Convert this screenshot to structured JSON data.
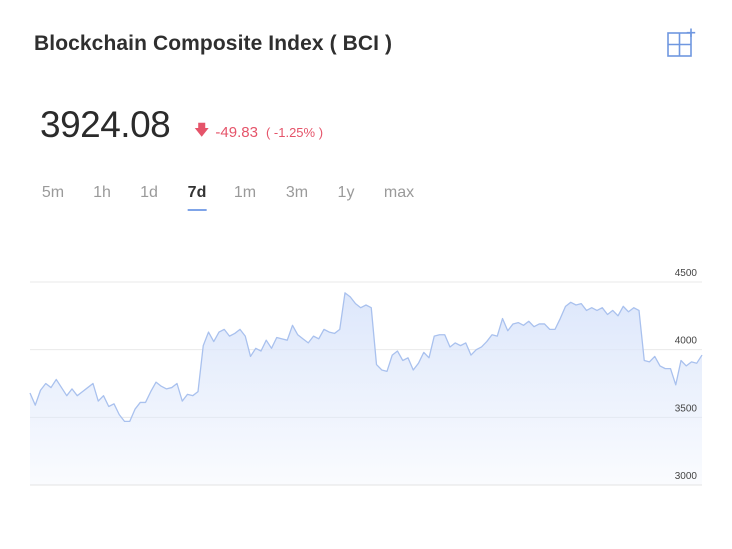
{
  "header": {
    "title": "Blockchain Composite Index ( BCI )",
    "add_icon": "grid-plus-icon"
  },
  "quote": {
    "price": "3924.08",
    "change": "-49.83",
    "change_pct": "( -1.25% )",
    "direction_icon": "arrow-down-icon",
    "down_color": "#e5546a"
  },
  "tabs": [
    {
      "label": "5m",
      "active": false
    },
    {
      "label": "1h",
      "active": false
    },
    {
      "label": "1d",
      "active": false
    },
    {
      "label": "7d",
      "active": true
    },
    {
      "label": "1m",
      "active": false
    },
    {
      "label": "3m",
      "active": false
    },
    {
      "label": "1y",
      "active": false
    },
    {
      "label": "max",
      "active": false
    }
  ],
  "chart_data": {
    "type": "area",
    "title": "",
    "xlabel": "",
    "ylabel": "",
    "ylim": [
      3000,
      4500
    ],
    "y_ticks": [
      4500,
      4000,
      3500,
      3000
    ],
    "grid": true,
    "axis_side": "right",
    "line_color": "#a9c1ee",
    "fill_color": "#dde7fb",
    "series": [
      {
        "values": [
          3680,
          3590,
          3700,
          3750,
          3720,
          3780,
          3720,
          3660,
          3710,
          3660,
          3690,
          3720,
          3750,
          3620,
          3660,
          3580,
          3600,
          3520,
          3470,
          3470,
          3560,
          3610,
          3610,
          3690,
          3760,
          3730,
          3710,
          3720,
          3750,
          3620,
          3670,
          3660,
          3690,
          4030,
          4130,
          4060,
          4130,
          4150,
          4100,
          4120,
          4150,
          4100,
          3950,
          4010,
          3990,
          4070,
          4010,
          4090,
          4080,
          4070,
          4180,
          4110,
          4080,
          4050,
          4100,
          4080,
          4150,
          4130,
          4120,
          4150,
          4420,
          4390,
          4340,
          4310,
          4330,
          4310,
          3890,
          3850,
          3840,
          3960,
          3990,
          3920,
          3940,
          3850,
          3900,
          3980,
          3940,
          4100,
          4110,
          4110,
          4020,
          4050,
          4030,
          4050,
          3960,
          4000,
          4020,
          4060,
          4110,
          4100,
          4230,
          4140,
          4190,
          4200,
          4180,
          4210,
          4170,
          4190,
          4190,
          4150,
          4150,
          4230,
          4320,
          4350,
          4330,
          4340,
          4290,
          4310,
          4290,
          4310,
          4260,
          4290,
          4250,
          4320,
          4280,
          4310,
          4290,
          3920,
          3910,
          3950,
          3880,
          3860,
          3860,
          3740,
          3920,
          3880,
          3910,
          3900,
          3960
        ]
      }
    ]
  }
}
